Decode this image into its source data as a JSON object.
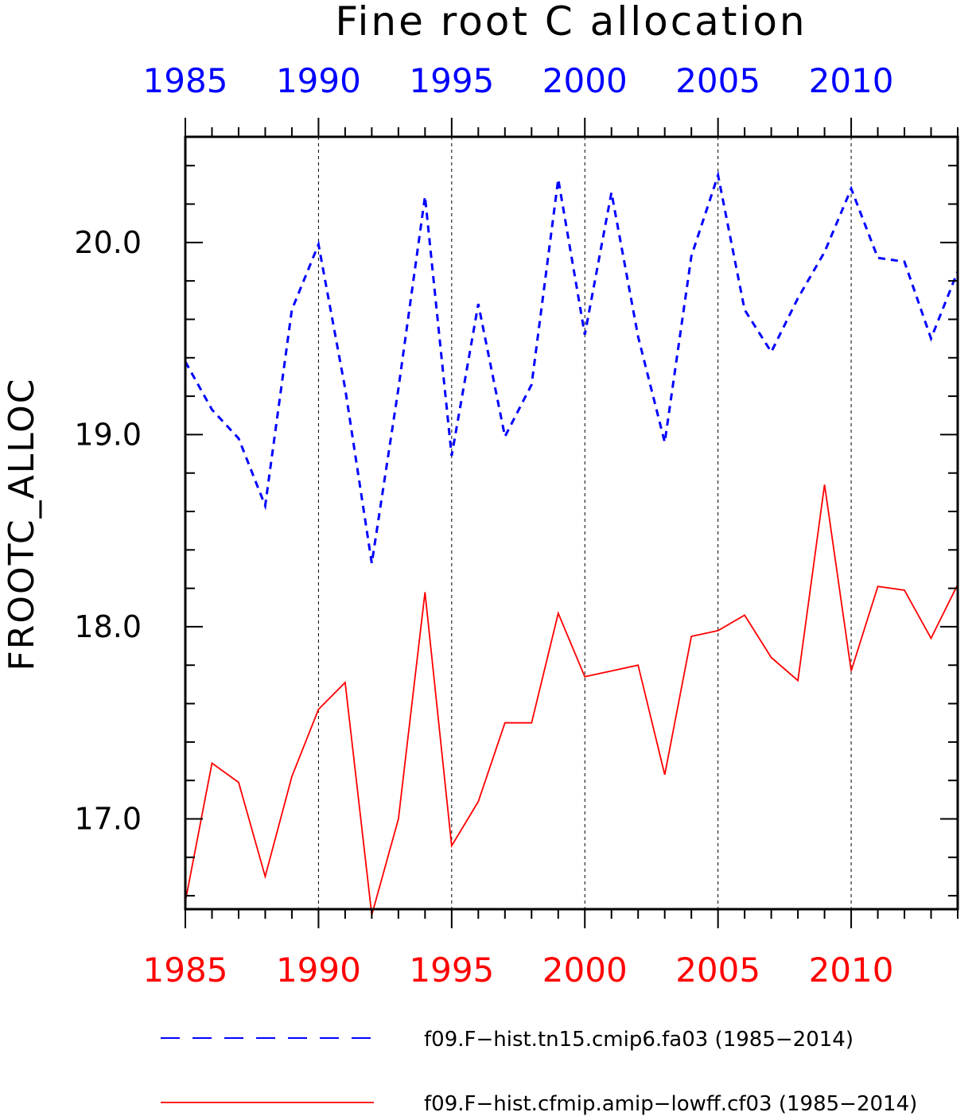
{
  "chart_data": {
    "type": "line",
    "title": "Fine root C allocation",
    "ylabel": "FROOTC_ALLOC",
    "xlabel": "",
    "xlim": [
      1985,
      2014
    ],
    "ylim": [
      16.53,
      20.55
    ],
    "x_ticks": [
      1985,
      1990,
      1995,
      2000,
      2005,
      2010
    ],
    "x_tick_labels": [
      "1985",
      "1990",
      "1995",
      "2000",
      "2005",
      "2010"
    ],
    "y_ticks": [
      17.0,
      18.0,
      19.0,
      20.0
    ],
    "y_tick_labels": [
      "17.0",
      "18.0",
      "19.0",
      "20.0"
    ],
    "grid": "vertical dashed at major x ticks",
    "legend_position": "bottom",
    "x": [
      1985,
      1986,
      1987,
      1988,
      1989,
      1990,
      1991,
      1992,
      1993,
      1994,
      1995,
      1996,
      1997,
      1998,
      1999,
      2000,
      2001,
      2002,
      2003,
      2004,
      2005,
      2006,
      2007,
      2008,
      2009,
      2010,
      2011,
      2012,
      2013,
      2014
    ],
    "series": [
      {
        "name": "f09.F−hist.tn15.cmip6.fa03 (1985−2014)",
        "color": "#0000ff",
        "style": "dashed",
        "values": [
          19.38,
          19.13,
          18.98,
          18.63,
          19.65,
          19.99,
          19.24,
          18.33,
          19.24,
          20.24,
          18.89,
          19.68,
          18.99,
          19.26,
          20.33,
          19.52,
          20.26,
          19.51,
          18.96,
          19.93,
          20.35,
          19.65,
          19.43,
          19.71,
          19.95,
          20.28,
          19.92,
          19.9,
          19.5,
          19.85
        ]
      },
      {
        "name": "f09.F−hist.cfmip.amip−lowff.cf03 (1985−2014)",
        "color": "#ff0000",
        "style": "solid",
        "values": [
          16.57,
          17.29,
          17.19,
          16.7,
          17.22,
          17.57,
          17.71,
          16.5,
          17.0,
          18.18,
          16.86,
          17.09,
          17.5,
          17.5,
          18.07,
          17.74,
          17.77,
          17.8,
          17.23,
          17.95,
          17.98,
          18.06,
          17.84,
          17.72,
          18.74,
          17.77,
          18.21,
          18.19,
          17.94,
          18.22
        ]
      }
    ]
  }
}
